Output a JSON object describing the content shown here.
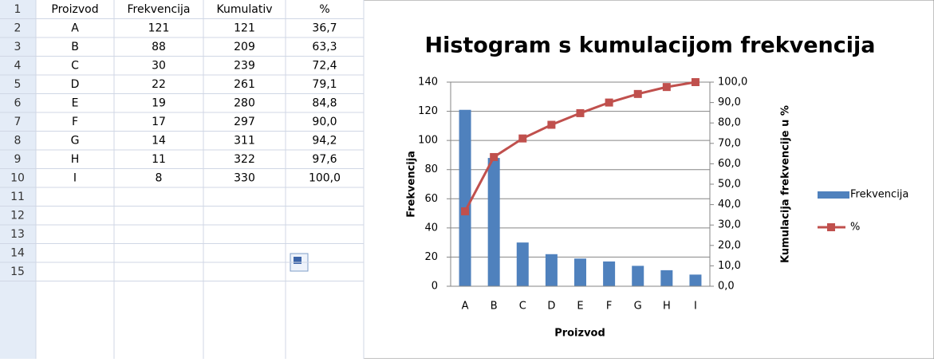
{
  "table": {
    "row_numbers": [
      1,
      2,
      3,
      4,
      5,
      6,
      7,
      8,
      9,
      10,
      11,
      12,
      13,
      14,
      15
    ],
    "header": [
      "Proizvod",
      "Frekvencija",
      "Kumulativ",
      "%"
    ],
    "rows": [
      [
        "A",
        121,
        121,
        "36,7"
      ],
      [
        "B",
        88,
        209,
        "63,3"
      ],
      [
        "C",
        30,
        239,
        "72,4"
      ],
      [
        "D",
        22,
        261,
        "79,1"
      ],
      [
        "E",
        19,
        280,
        "84,8"
      ],
      [
        "F",
        17,
        297,
        "90,0"
      ],
      [
        "G",
        14,
        311,
        "94,2"
      ],
      [
        "H",
        11,
        322,
        "97,6"
      ],
      [
        "I",
        8,
        330,
        "100,0"
      ]
    ]
  },
  "chart_data": {
    "type": "bar",
    "title": "Histogram s kumulacijom frekvencija",
    "xlabel": "Proizvod",
    "ylabel": "Frekvencija",
    "y2label": "Kumulacija  frekvencije u %",
    "categories": [
      "A",
      "B",
      "C",
      "D",
      "E",
      "F",
      "G",
      "H",
      "I"
    ],
    "series": [
      {
        "name": "Frekvencija",
        "color": "#4f81bd",
        "values": [
          121,
          88,
          30,
          22,
          19,
          17,
          14,
          11,
          8
        ]
      },
      {
        "name": "%",
        "color": "#c0504d",
        "type": "line",
        "axis": "y2",
        "values": [
          36.7,
          63.3,
          72.4,
          79.1,
          84.8,
          90.0,
          94.2,
          97.6,
          100.0
        ]
      }
    ],
    "ylim": [
      0,
      140
    ],
    "yticks": [
      0,
      20,
      40,
      60,
      80,
      100,
      120,
      140
    ],
    "y2lim": [
      0,
      100
    ],
    "y2ticks": [
      {
        "value": 0,
        "label": "0,0"
      },
      {
        "value": 10,
        "label": "10,0"
      },
      {
        "value": 20,
        "label": "20,0"
      },
      {
        "value": 30,
        "label": "30,0"
      },
      {
        "value": 40,
        "label": "40,0"
      },
      {
        "value": 50,
        "label": "50,0"
      },
      {
        "value": 60,
        "label": "60,0"
      },
      {
        "value": 70,
        "label": "70,0"
      },
      {
        "value": 80,
        "label": "80,0"
      },
      {
        "value": 90,
        "label": "90,0"
      },
      {
        "value": 100,
        "label": "100,0"
      }
    ],
    "grid": true,
    "legend": "right"
  }
}
